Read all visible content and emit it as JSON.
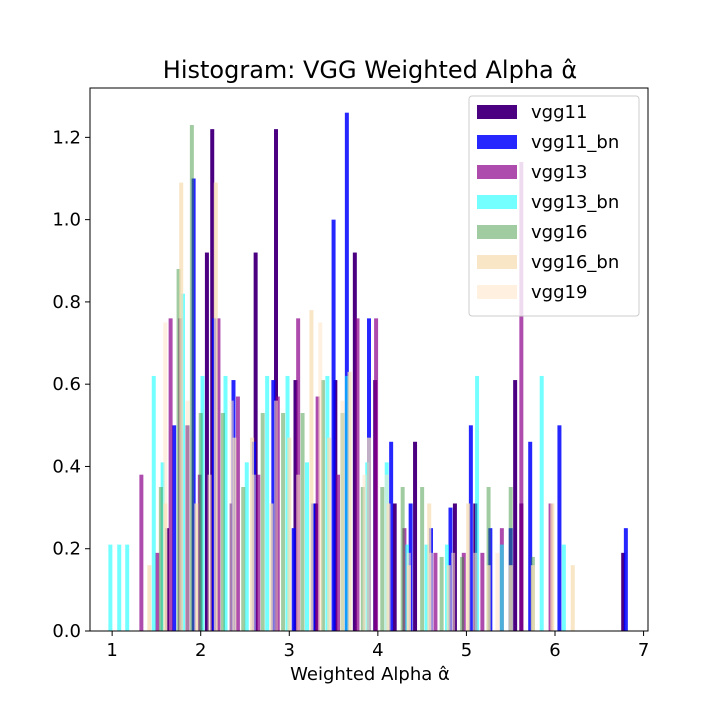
{
  "chart_data": {
    "type": "bar",
    "title": "Histogram: VGG Weighted Alpha α̂",
    "xlabel": "Weighted Alpha α̂",
    "ylabel": "",
    "xlim": [
      0.75,
      7.05
    ],
    "ylim": [
      0,
      1.32
    ],
    "xticks": [
      1,
      2,
      3,
      4,
      5,
      6,
      7
    ],
    "yticks": [
      0.0,
      0.2,
      0.4,
      0.6,
      0.8,
      1.0,
      1.2
    ],
    "xtick_labels": [
      "1",
      "2",
      "3",
      "4",
      "5",
      "6",
      "7"
    ],
    "ytick_labels": [
      "0.0",
      "0.2",
      "0.4",
      "0.6",
      "0.8",
      "1.0",
      "1.2"
    ],
    "legend_position": "upper-right",
    "bar_width": 0.045,
    "series": [
      {
        "name": "vgg11",
        "color": "#4b0082",
        "opacity": 1.0,
        "x": [
          1.62,
          1.85,
          2.07,
          2.13,
          2.35,
          2.62,
          2.85,
          3.07,
          3.3,
          3.52,
          3.74,
          3.97,
          4.19,
          4.42,
          4.87,
          5.1,
          5.55,
          5.62,
          6.77
        ],
        "values": [
          0.25,
          0.5,
          0.92,
          1.22,
          0.31,
          0.92,
          1.22,
          0.61,
          0.31,
          0.61,
          0.92,
          0.61,
          0.31,
          0.46,
          0.31,
          0.31,
          0.61,
          0.31,
          0.19
        ]
      },
      {
        "name": "vgg11_bn",
        "color": "#0000ff",
        "opacity": 0.85,
        "x": [
          1.7,
          1.92,
          2.15,
          2.37,
          2.6,
          2.82,
          3.05,
          3.27,
          3.5,
          3.65,
          3.9,
          4.15,
          4.37,
          4.6,
          4.82,
          5.05,
          5.27,
          5.5,
          5.72,
          6.05,
          6.8
        ],
        "values": [
          0.5,
          1.1,
          0.76,
          0.61,
          0.46,
          0.61,
          0.25,
          0.31,
          1.0,
          1.26,
          0.76,
          0.46,
          0.31,
          0.25,
          0.3,
          0.5,
          0.25,
          0.25,
          0.46,
          0.5,
          0.25
        ]
      },
      {
        "name": "vgg13",
        "color": "#8b008b",
        "opacity": 0.7,
        "x": [
          1.33,
          1.51,
          1.66,
          1.77,
          1.99,
          2.2,
          2.42,
          2.65,
          2.87,
          3.1,
          3.32,
          3.55,
          3.77,
          3.98,
          4.3,
          4.65,
          4.97,
          5.18,
          5.4,
          5.62,
          5.95
        ],
        "values": [
          0.38,
          0.19,
          0.76,
          0.76,
          0.38,
          0.76,
          0.57,
          0.38,
          0.57,
          0.76,
          0.57,
          0.38,
          0.76,
          0.76,
          0.25,
          0.19,
          0.19,
          0.19,
          0.25,
          1.14,
          0.31
        ]
      },
      {
        "name": "vgg13_bn",
        "color": "#00ffff",
        "opacity": 0.55,
        "x": [
          0.98,
          1.08,
          1.17,
          1.47,
          1.57,
          1.8,
          2.02,
          2.28,
          2.52,
          2.75,
          2.98,
          3.2,
          3.43,
          3.65,
          3.88,
          4.1,
          4.33,
          4.55,
          4.78,
          5.12,
          5.4,
          5.85,
          6.1
        ],
        "values": [
          0.21,
          0.21,
          0.21,
          0.62,
          0.41,
          0.82,
          0.62,
          0.62,
          0.41,
          0.62,
          0.62,
          0.41,
          0.62,
          0.62,
          0.41,
          0.41,
          0.21,
          0.21,
          0.21,
          0.62,
          0.21,
          0.62,
          0.21
        ]
      },
      {
        "name": "vgg16",
        "color": "#2e8b2e",
        "opacity": 0.45,
        "x": [
          1.55,
          1.75,
          1.9,
          2.0,
          2.25,
          2.48,
          2.7,
          2.93,
          3.15,
          3.38,
          3.6,
          3.83,
          4.05,
          4.28,
          4.5,
          4.72,
          4.95,
          5.25,
          5.5,
          5.75
        ],
        "values": [
          0.35,
          0.88,
          1.23,
          0.53,
          0.53,
          0.35,
          0.53,
          0.53,
          0.53,
          0.61,
          0.53,
          0.35,
          0.35,
          0.35,
          0.35,
          0.18,
          0.18,
          0.35,
          0.35,
          0.18
        ]
      },
      {
        "name": "vgg16_bn",
        "color": "#f5deb3",
        "opacity": 0.75,
        "x": [
          1.42,
          1.6,
          1.78,
          1.95,
          2.17,
          2.38,
          2.58,
          2.8,
          3.0,
          3.25,
          3.45,
          3.68,
          3.9,
          4.12,
          4.35,
          4.58,
          4.8,
          5.02,
          5.25,
          5.5,
          5.75,
          5.97,
          6.2
        ],
        "values": [
          0.16,
          0.31,
          1.09,
          0.31,
          1.09,
          0.47,
          0.47,
          0.31,
          0.47,
          0.78,
          0.47,
          0.63,
          0.47,
          0.31,
          0.16,
          0.31,
          0.16,
          0.31,
          0.16,
          0.16,
          0.16,
          0.31,
          0.16
        ]
      },
      {
        "name": "vgg19",
        "color": "#ffe4c4",
        "opacity": 0.55,
        "x": [
          1.6,
          1.85,
          2.1,
          2.35,
          2.6,
          2.85,
          3.1,
          3.35,
          3.6,
          3.85,
          4.1,
          4.35,
          4.6,
          4.85,
          5.1,
          5.35
        ],
        "values": [
          0.75,
          0.56,
          0.38,
          0.56,
          0.38,
          0.56,
          0.38,
          0.75,
          0.56,
          0.38,
          0.38,
          0.19,
          0.19,
          0.19,
          0.19,
          0.19
        ]
      }
    ]
  }
}
